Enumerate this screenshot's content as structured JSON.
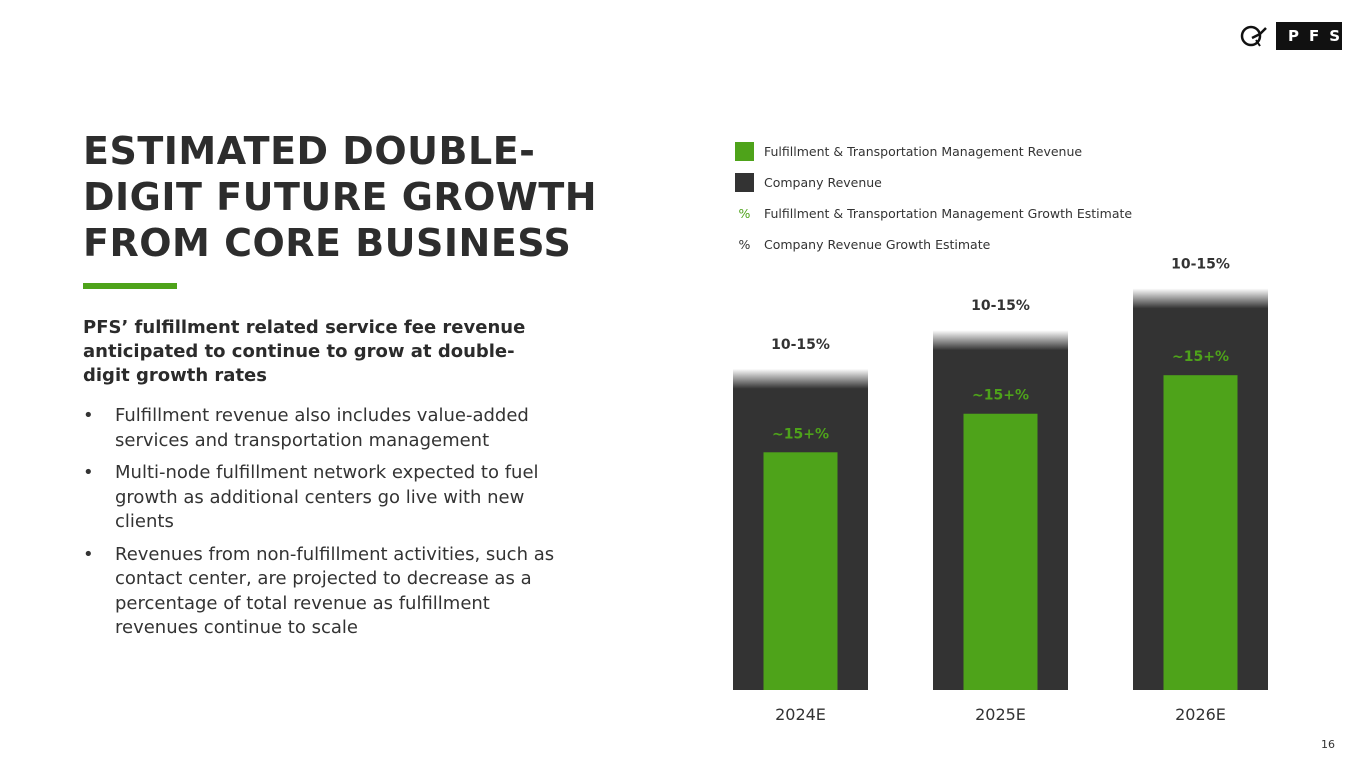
{
  "logo": {
    "text": "PFS"
  },
  "title": "ESTIMATED DOUBLE-DIGIT FUTURE GROWTH FROM CORE BUSINESS",
  "subhead": "PFS’ fulfillment related service fee revenue anticipated to continue to grow at double-digit growth rates",
  "bullets": [
    "Fulfillment revenue also includes value-added services and transportation management",
    "Multi-node fulfillment network expected to fuel growth as additional centers go live with new clients",
    "Revenues from non-fulfillment activities, such as contact center, are projected to decrease as a percentage of total revenue as fulfillment revenues continue to scale"
  ],
  "bullet_symbol": "•",
  "legend": {
    "items": [
      {
        "label": "Fulfillment & Transportation Management Revenue",
        "kind": "swatch",
        "color": "#4ea31a"
      },
      {
        "label": "Company Revenue",
        "kind": "swatch",
        "color": "#333333"
      },
      {
        "label": "Fulfillment & Transportation Management Growth Estimate",
        "kind": "pct",
        "symbol": "%",
        "color": "#4ea31a"
      },
      {
        "label": "Company Revenue Growth Estimate",
        "kind": "pct",
        "symbol": "%",
        "color": "#333333"
      }
    ]
  },
  "chart_data": {
    "type": "bar",
    "categories": [
      "2024E",
      "2025E",
      "2026E"
    ],
    "series": [
      {
        "name": "Company Revenue",
        "values": [
          1.0,
          1.12,
          1.25
        ],
        "growth_labels": [
          "10-15%",
          "10-15%",
          "10-15%"
        ],
        "color": "#333333"
      },
      {
        "name": "Fulfillment & Transportation Management Revenue",
        "values": [
          0.74,
          0.86,
          0.98
        ],
        "growth_labels": [
          "~15+%",
          "~15+%",
          "~15+%"
        ],
        "color": "#4ea31a"
      }
    ],
    "title": "",
    "xlabel": "",
    "ylabel": "",
    "ylim": [
      0,
      1.3
    ]
  },
  "page_number": "16"
}
